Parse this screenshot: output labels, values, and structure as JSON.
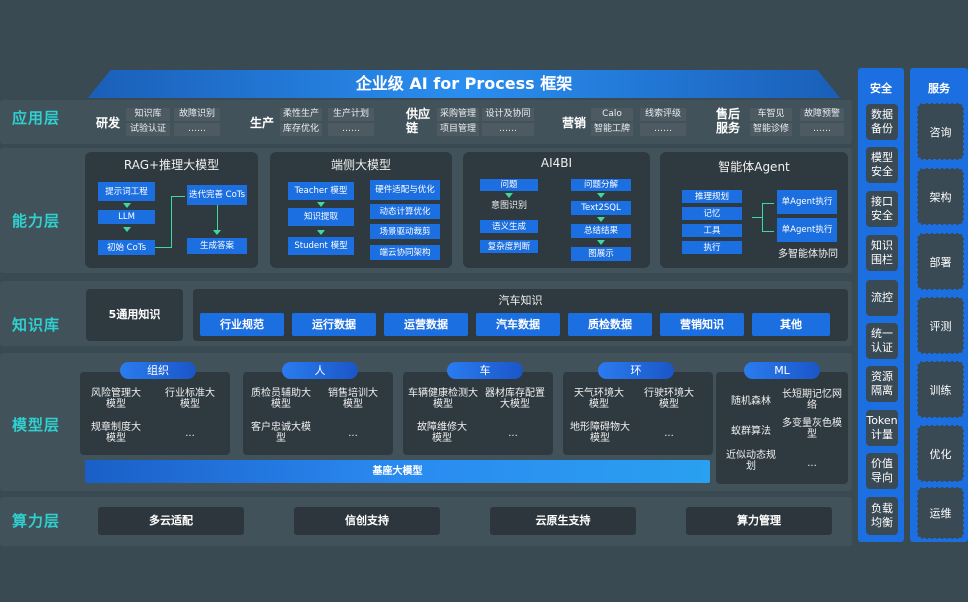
{
  "title": "企业级 AI for Process 框架",
  "layers": {
    "app": "应用层",
    "capability": "能力层",
    "knowledge": "知识库",
    "model": "模型层",
    "compute": "算力层"
  },
  "app": {
    "groups": [
      {
        "name": "研发",
        "items": [
          "知识库",
          "试验认证",
          "故障识别",
          "……"
        ]
      },
      {
        "name": "生产",
        "items": [
          "柔性生产",
          "库存优化",
          "生产计划",
          "……"
        ]
      },
      {
        "name": "供应链",
        "items": [
          "采购管理",
          "项目管理",
          "设计及协同",
          "……"
        ]
      },
      {
        "name": "营销",
        "items": [
          "Calo",
          "智能工牌",
          "线索评级",
          "……"
        ]
      },
      {
        "name": "售后服务",
        "items": [
          "车智见",
          "智能诊修",
          "故障预警",
          "……"
        ]
      }
    ]
  },
  "capability": {
    "rag": {
      "title": "RAG+推理大模型",
      "items": [
        "提示词工程",
        "LLM",
        "初始 CoTs",
        "迭代完善 CoTs",
        "生成答案"
      ]
    },
    "edge": {
      "title": "端侧大模型",
      "items": [
        "Teacher 模型",
        "知识提取",
        "Student 模型",
        "硬件适配与优化",
        "动态计算优化",
        "场景驱动裁剪",
        "端云协同架构"
      ]
    },
    "ai4bi": {
      "title": "AI4BI",
      "items": [
        "问题",
        "意图识别",
        "语义生成",
        "复杂度判断",
        "问题分解",
        "Text2SQL",
        "总结结果",
        "图展示"
      ]
    },
    "agent": {
      "title": "智能体Agent",
      "items": [
        "推理规划",
        "记忆",
        "工具",
        "执行",
        "单Agent执行",
        "单Agent执行",
        "多智能体协同"
      ]
    }
  },
  "knowledge": {
    "general": "5通用知识",
    "auto_title": "汽车知识",
    "auto_items": [
      "行业规范",
      "运行数据",
      "运营数据",
      "汽车数据",
      "质检数据",
      "营销知识",
      "其他"
    ]
  },
  "model": {
    "groups": [
      {
        "tag": "组织",
        "items": [
          "风险管理大模型",
          "行业标准大模型",
          "规章制度大模型",
          "..."
        ]
      },
      {
        "tag": "人",
        "items": [
          "质检员辅助大模型",
          "销售培训大模型",
          "客户忠诚大模型",
          "..."
        ]
      },
      {
        "tag": "车",
        "items": [
          "车辆健康检测大模型",
          "器材库存配置大模型",
          "故障维修大模型",
          "..."
        ]
      },
      {
        "tag": "环",
        "items": [
          "天气环境大模型",
          "行驶环境大模型",
          "地形障碍物大模型",
          "..."
        ]
      },
      {
        "tag": "ML",
        "items": [
          "随机森林",
          "长短期记忆网络",
          "蚁群算法",
          "多变量灰色模型",
          "近似动态规划",
          "..."
        ]
      }
    ],
    "base": "基座大模型"
  },
  "compute": [
    "多云适配",
    "信创支持",
    "云原生支持",
    "算力管理"
  ],
  "security": {
    "title": "安全",
    "items": [
      "数据备份",
      "模型安全",
      "接口安全",
      "知识围栏",
      "流控",
      "统一认证",
      "资源隔离",
      "Token计量",
      "价值导向",
      "负载均衡"
    ]
  },
  "services": {
    "title": "服务",
    "items": [
      "咨询",
      "架构",
      "部署",
      "评测",
      "训练",
      "优化",
      "运维"
    ]
  },
  "colors": {
    "accent": "#1c6fe0",
    "layer_label": "#2fd0cf",
    "background": "#3a4a52"
  }
}
